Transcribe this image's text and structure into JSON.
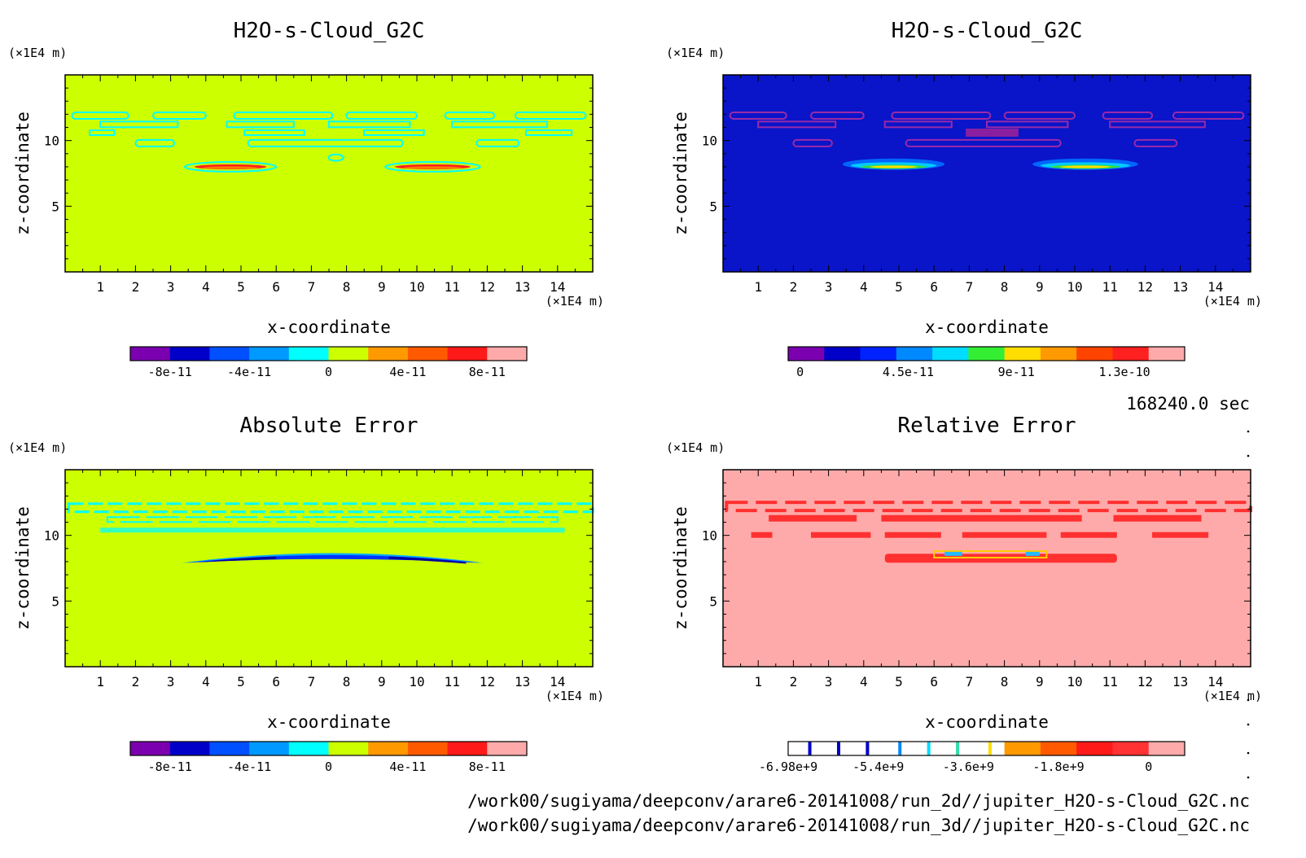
{
  "figure": {
    "time_label": "168240.0 sec",
    "file_paths": [
      "/work00/sugiyama/deepconv/arare6-20141008/run_2d//jupiter_H2O-s-Cloud_G2C.nc",
      "/work00/sugiyama/deepconv/arare6-20141008/run_3d//jupiter_H2O-s-Cloud_G2C.nc"
    ]
  },
  "colors": {
    "yellowgreen": "#ccff00",
    "navy": "#0000c8",
    "pink": "#ffaaaa",
    "cyan": "#00ffff",
    "red": "#ff1f1f",
    "orange": "#ff7a00",
    "blue": "#0044ff",
    "purple": "#ff44aa"
  },
  "chart_data": [
    {
      "type": "heatmap",
      "title": "H2O-s-Cloud_G2C",
      "xlabel": "x-coordinate",
      "ylabel": "z-coordinate",
      "x_unit": "(×1E4 m)",
      "y_unit": "(×1E4 m)",
      "xlim": [
        0,
        15
      ],
      "ylim": [
        0,
        15
      ],
      "xticks": [
        1,
        2,
        3,
        4,
        5,
        6,
        7,
        8,
        9,
        10,
        11,
        12,
        13,
        14
      ],
      "yticks": [
        5,
        10
      ],
      "background": "#ccff00",
      "colorbar": {
        "colors": [
          "#7b00b0",
          "#0000c8",
          "#0050ff",
          "#0099ff",
          "#00ffff",
          "#ccff00",
          "#ff9900",
          "#ff5a00",
          "#ff1a1a",
          "#ffaaaa"
        ],
        "tick_labels": [
          "-8e-11",
          "-4e-11",
          "0",
          "4e-11",
          "8e-11"
        ],
        "tick_positions": [
          1,
          3,
          5,
          7,
          9
        ]
      }
    },
    {
      "type": "heatmap",
      "title": "H2O-s-Cloud_G2C",
      "xlabel": "x-coordinate",
      "ylabel": "z-coordinate",
      "x_unit": "(×1E4 m)",
      "y_unit": "(×1E4 m)",
      "xlim": [
        0,
        15
      ],
      "ylim": [
        0,
        15
      ],
      "xticks": [
        1,
        2,
        3,
        4,
        5,
        6,
        7,
        8,
        9,
        10,
        11,
        12,
        13,
        14
      ],
      "yticks": [
        5,
        10
      ],
      "background": "#0a14c8",
      "colorbar": {
        "colors": [
          "#7b00b0",
          "#0000c8",
          "#0022ff",
          "#0088ff",
          "#00ddff",
          "#33ee33",
          "#ffdd00",
          "#ff9900",
          "#ff4400",
          "#ff2020",
          "#ffaaaa"
        ],
        "tick_labels": [
          "0",
          "4.5e-11",
          "9e-11",
          "1.3e-10"
        ],
        "tick_positions": [
          0.33,
          3.33,
          6.33,
          9.33
        ]
      }
    },
    {
      "type": "heatmap",
      "title": "Absolute Error",
      "xlabel": "x-coordinate",
      "ylabel": "z-coordinate",
      "x_unit": "(×1E4 m)",
      "y_unit": "(×1E4 m)",
      "xlim": [
        0,
        15
      ],
      "ylim": [
        0,
        15
      ],
      "xticks": [
        1,
        2,
        3,
        4,
        5,
        6,
        7,
        8,
        9,
        10,
        11,
        12,
        13,
        14
      ],
      "yticks": [
        5,
        10
      ],
      "background": "#ccff00",
      "colorbar": {
        "colors": [
          "#7b00b0",
          "#0000c8",
          "#0050ff",
          "#0099ff",
          "#00ffff",
          "#ccff00",
          "#ff9900",
          "#ff5a00",
          "#ff1a1a",
          "#ffaaaa"
        ],
        "tick_labels": [
          "-8e-11",
          "-4e-11",
          "0",
          "4e-11",
          "8e-11"
        ],
        "tick_positions": [
          1,
          3,
          5,
          7,
          9
        ]
      }
    },
    {
      "type": "heatmap",
      "title": "Relative Error",
      "xlabel": "x-coordinate",
      "ylabel": "z-coordinate",
      "x_unit": "(×1E4 m)",
      "y_unit": "(×1E4 m)",
      "xlim": [
        0,
        15
      ],
      "ylim": [
        0,
        15
      ],
      "xticks": [
        1,
        2,
        3,
        4,
        5,
        6,
        7,
        8,
        9,
        10,
        11,
        12,
        13,
        14
      ],
      "yticks": [
        5,
        10
      ],
      "background": "#ffaaaa",
      "colorbar": {
        "colors": [
          "#ffffff",
          "#ffffff",
          "#ffffff",
          "#ffffff",
          "#ffffff",
          "#ffffff",
          "#ff9900",
          "#ff5a00",
          "#ff1a1a",
          "#ff3333",
          "#ffaaaa"
        ],
        "stripes": [
          {
            "at": 0.6,
            "color": "#0000c8"
          },
          {
            "at": 1.4,
            "color": "#0000c8"
          },
          {
            "at": 2.2,
            "color": "#0000c8"
          },
          {
            "at": 3.1,
            "color": "#0088ff"
          },
          {
            "at": 3.9,
            "color": "#00ddff"
          },
          {
            "at": 4.7,
            "color": "#33ddaa"
          },
          {
            "at": 5.6,
            "color": "#ffdd00"
          }
        ],
        "tick_labels": [
          "-6.98e+9",
          "-5.4e+9",
          "-3.6e+9",
          "-1.8e+9",
          "0"
        ],
        "tick_positions": [
          0,
          2.5,
          5,
          7.5,
          10
        ]
      }
    }
  ]
}
